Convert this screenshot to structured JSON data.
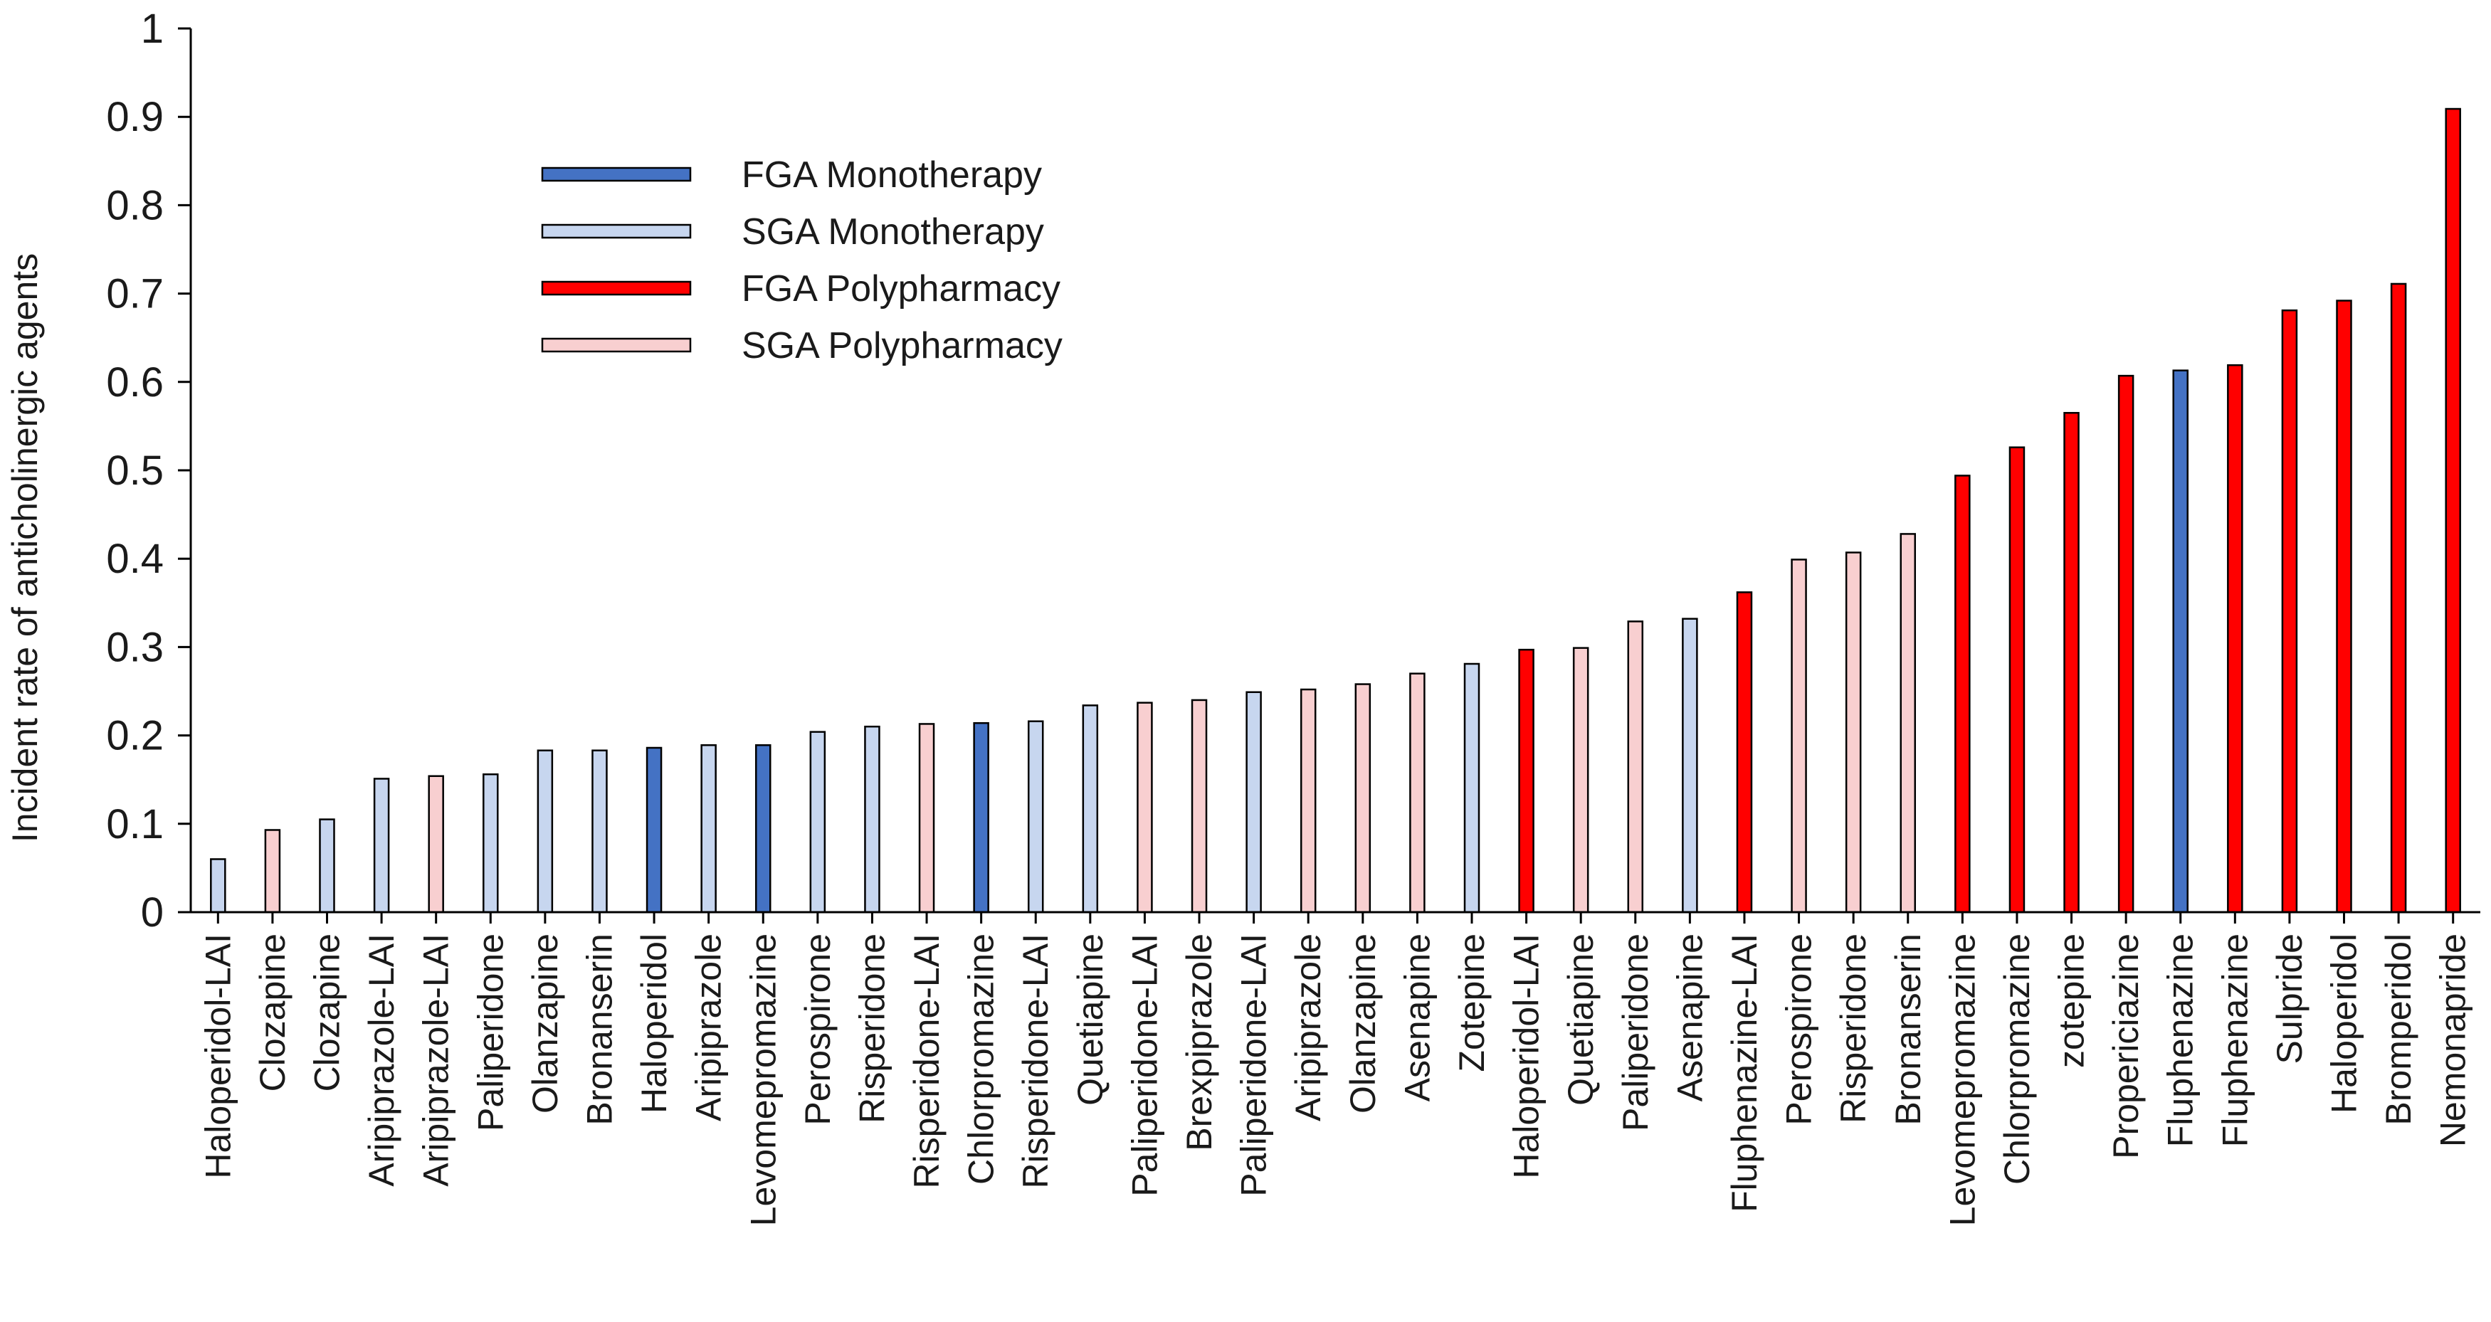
{
  "chart_data": {
    "type": "bar",
    "title": "",
    "xlabel": "",
    "ylabel": "Incident rate of anticholinergic agents",
    "ylim": [
      0,
      1
    ],
    "yticks": [
      0,
      0.1,
      0.2,
      0.3,
      0.4,
      0.5,
      0.6,
      0.7,
      0.8,
      0.9,
      1
    ],
    "ytick_labels": [
      "0",
      "0.1",
      "0.2",
      "0.3",
      "0.4",
      "0.5",
      "0.6",
      "0.7",
      "0.8",
      "0.9",
      "1"
    ],
    "grid": false,
    "legend_position": "top-left",
    "legend": [
      {
        "key": "fga_mono",
        "label": "FGA Monotherapy",
        "color": "#4472c4"
      },
      {
        "key": "sga_mono",
        "label": "SGA Monotherapy",
        "color": "#c7d6ef"
      },
      {
        "key": "fga_poly",
        "label": "FGA Polypharmacy",
        "color": "#ff0000"
      },
      {
        "key": "sga_poly",
        "label": "SGA Polypharmacy",
        "color": "#f8cfd0"
      }
    ],
    "categories": [
      "Haloperidol-LAI",
      "Clozapine",
      "Clozapine",
      "Aripiprazole-LAI",
      "Aripiprazole-LAI",
      "Paliperidone",
      "Olanzapine",
      "Bronanserin",
      "Haloperidol",
      "Aripiprazole",
      "Levomepromazine",
      "Perospirone",
      "Risperidone",
      "Risperidone-LAI",
      "Chlorpromazine",
      "Risperidone-LAI",
      "Quetiapine",
      "Paliperidone-LAI",
      "Brexpiprazole",
      "Paliperidone-LAI",
      "Aripiprazole",
      "Olanzapine",
      "Asenapine",
      "Zotepine",
      "Haloperidol-LAI",
      "Quetiapine",
      "Paliperidone",
      "Asenapine",
      "Fluphenazine-LAI",
      "Perospirone",
      "Risperidone",
      "Bronanserin",
      "Levomepromazine",
      "Chlorpromazine",
      "zotepine",
      "Propericiazine",
      "Fluphenazine",
      "Fluphenazine",
      "Sulpride",
      "Haloperidol",
      "Bromperidol",
      "Nemonapride"
    ],
    "values": [
      0.06,
      0.093,
      0.105,
      0.151,
      0.154,
      0.156,
      0.183,
      0.183,
      0.186,
      0.189,
      0.189,
      0.204,
      0.21,
      0.213,
      0.214,
      0.216,
      0.234,
      0.237,
      0.24,
      0.249,
      0.252,
      0.258,
      0.27,
      0.281,
      0.297,
      0.299,
      0.329,
      0.332,
      0.362,
      0.399,
      0.407,
      0.428,
      0.494,
      0.526,
      0.565,
      0.607,
      0.613,
      0.619,
      0.681,
      0.692,
      0.711,
      0.909
    ],
    "groups": [
      "sga_mono",
      "sga_poly",
      "sga_mono",
      "sga_mono",
      "sga_poly",
      "sga_mono",
      "sga_mono",
      "sga_mono",
      "fga_mono",
      "sga_mono",
      "fga_mono",
      "sga_mono",
      "sga_mono",
      "sga_poly",
      "fga_mono",
      "sga_mono",
      "sga_mono",
      "sga_poly",
      "sga_poly",
      "sga_mono",
      "sga_poly",
      "sga_poly",
      "sga_poly",
      "sga_mono",
      "fga_poly",
      "sga_poly",
      "sga_poly",
      "sga_mono",
      "fga_poly",
      "sga_poly",
      "sga_poly",
      "sga_poly",
      "fga_poly",
      "fga_poly",
      "fga_poly",
      "fga_poly",
      "fga_mono",
      "fga_poly",
      "fga_poly",
      "fga_poly",
      "fga_poly",
      "fga_poly"
    ]
  }
}
